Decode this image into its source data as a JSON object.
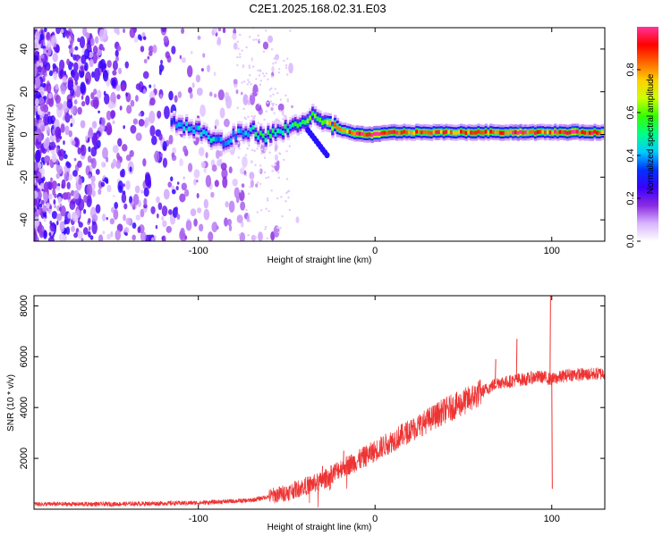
{
  "title": "C2E1.2025.168.02.31.E03",
  "chart_data": [
    {
      "type": "heatmap",
      "xlabel": "Height of straight line (km)",
      "ylabel": "Frequency (Hz)",
      "xlim": [
        -193,
        130
      ],
      "ylim": [
        -50,
        50
      ],
      "xticks": [
        -100,
        0,
        100
      ],
      "yticks": [
        -40,
        -20,
        0,
        20,
        40
      ],
      "grid": false,
      "colorbar": {
        "label": "Normalized spectral amplitude",
        "range": [
          0,
          1
        ],
        "ticks": [
          "0.0",
          "0.2",
          "0.4",
          "0.6",
          "0.8"
        ],
        "colors": [
          "#ffffff",
          "#d8b4ff",
          "#8a2be2",
          "#3a00ff",
          "#0033ff",
          "#00ccff",
          "#00ff88",
          "#33ff00",
          "#ccff00",
          "#ffd000",
          "#ff6600",
          "#ff0000",
          "#ff3399"
        ]
      },
      "ridge": [
        {
          "x": -115,
          "f": 6,
          "a": 0.3
        },
        {
          "x": -108,
          "f": 4,
          "a": 0.35
        },
        {
          "x": -100,
          "f": 2,
          "a": 0.35
        },
        {
          "x": -92,
          "f": -2,
          "a": 0.4
        },
        {
          "x": -85,
          "f": -4,
          "a": 0.3
        },
        {
          "x": -78,
          "f": 0,
          "a": 0.35
        },
        {
          "x": -70,
          "f": 2,
          "a": 0.4
        },
        {
          "x": -62,
          "f": -1,
          "a": 0.45
        },
        {
          "x": -55,
          "f": 1,
          "a": 0.4
        },
        {
          "x": -48,
          "f": 3,
          "a": 0.45
        },
        {
          "x": -42,
          "f": 6,
          "a": 0.5
        },
        {
          "x": -35,
          "f": 8,
          "a": 0.55
        },
        {
          "x": -28,
          "f": 5,
          "a": 0.6
        },
        {
          "x": -22,
          "f": 3,
          "a": 0.7
        },
        {
          "x": -15,
          "f": 1,
          "a": 0.75
        },
        {
          "x": -8,
          "f": 0,
          "a": 0.9
        },
        {
          "x": 0,
          "f": 0,
          "a": 0.95
        },
        {
          "x": 10,
          "f": 1,
          "a": 0.85
        },
        {
          "x": 20,
          "f": 1,
          "a": 0.8
        },
        {
          "x": 30,
          "f": 1,
          "a": 0.8
        },
        {
          "x": 40,
          "f": 1,
          "a": 0.8
        },
        {
          "x": 50,
          "f": 1,
          "a": 0.8
        },
        {
          "x": 60,
          "f": 1,
          "a": 0.85
        },
        {
          "x": 70,
          "f": 1,
          "a": 0.8
        },
        {
          "x": 80,
          "f": 1,
          "a": 0.9
        },
        {
          "x": 90,
          "f": 1,
          "a": 0.85
        },
        {
          "x": 100,
          "f": 1,
          "a": 0.8
        },
        {
          "x": 110,
          "f": 1,
          "a": 0.9
        },
        {
          "x": 120,
          "f": 1,
          "a": 0.85
        },
        {
          "x": 130,
          "f": 1,
          "a": 0.8
        }
      ]
    },
    {
      "type": "line",
      "xlabel": "Height of straight line (km)",
      "ylabel": "SNR (10 * v/v)",
      "xlim": [
        -193,
        130
      ],
      "ylim": [
        0,
        8400
      ],
      "xticks": [
        -100,
        0,
        100
      ],
      "yticks": [
        2000,
        4000,
        6000,
        8000
      ],
      "grid": false,
      "color": "#ee3333",
      "x": [
        -193,
        -150,
        -100,
        -70,
        -50,
        -40,
        -30,
        -20,
        -10,
        0,
        10,
        20,
        30,
        40,
        50,
        60,
        65,
        70,
        75,
        80,
        85,
        90,
        95,
        100,
        110,
        120,
        130
      ],
      "y": [
        200,
        200,
        250,
        350,
        650,
        900,
        1100,
        1600,
        1900,
        2300,
        2700,
        3100,
        3500,
        3900,
        4200,
        4600,
        4800,
        5000,
        5000,
        5100,
        5100,
        5200,
        5200,
        5100,
        5300,
        5300,
        5350
      ],
      "spikes": [
        {
          "x": -30,
          "y": 1700
        },
        {
          "x": -18,
          "y": 2300
        },
        {
          "x": 68,
          "y": 5900
        },
        {
          "x": 80,
          "y": 6700
        },
        {
          "x": 99,
          "y": 8400
        },
        {
          "x": 100,
          "y": 800
        }
      ]
    }
  ]
}
